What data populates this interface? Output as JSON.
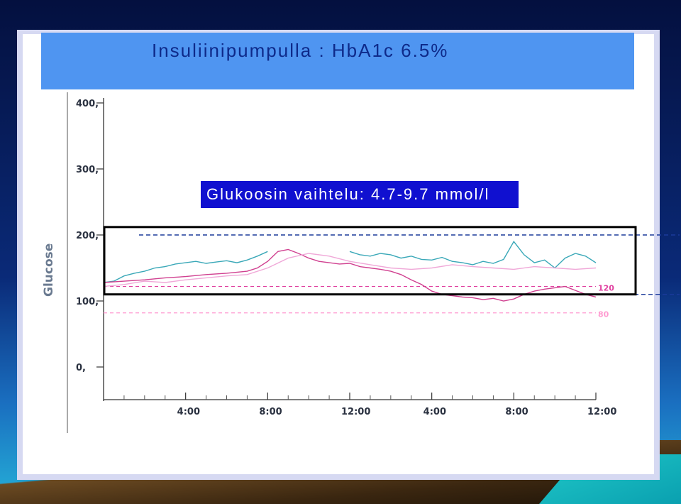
{
  "slide": {
    "title": "Insuliinipumpulla : HbA1c 6.5%",
    "callout": "Glukoosin vaihtelu: 4.7-9.7 mmol/l"
  },
  "chart_data": {
    "type": "line",
    "title": "",
    "xlabel": "",
    "ylabel": "Glucose",
    "ylim": [
      0,
      400
    ],
    "yticks": [
      "400,",
      "300,",
      "200,",
      "100,",
      "0,"
    ],
    "ytick_values": [
      400,
      300,
      200,
      100,
      0
    ],
    "xticks": [
      "4:00",
      "8:00",
      "12:00",
      "4:00",
      "8:00",
      "12:00"
    ],
    "xtick_hours": [
      4,
      8,
      12,
      16,
      20,
      24
    ],
    "xlim": [
      0,
      24
    ],
    "thresholds": [
      {
        "label": "120",
        "value": 122,
        "color": "#e040a0"
      },
      {
        "label": "80",
        "value": 82,
        "color": "#ff9ad0"
      }
    ],
    "highlight_range": [
      110,
      212
    ],
    "dashed_reference": [
      200,
      110
    ],
    "series": [
      {
        "color": "#3aa8b8",
        "x": [
          0,
          0.5,
          1,
          1.5,
          2,
          2.5,
          3,
          3.5,
          4,
          4.5,
          5,
          5.5,
          6,
          6.5,
          7,
          7.5,
          8,
          12,
          12.5,
          13,
          13.5,
          14,
          14.5,
          15,
          15.5,
          16,
          16.5,
          17,
          17.5,
          18,
          18.5,
          19,
          19.5,
          20,
          20.5,
          21,
          21.5,
          22,
          22.5,
          23,
          23.5,
          24
        ],
        "y": [
          128,
          130,
          138,
          142,
          145,
          150,
          152,
          156,
          158,
          160,
          157,
          159,
          161,
          158,
          162,
          168,
          175,
          175,
          170,
          168,
          172,
          170,
          165,
          168,
          163,
          162,
          166,
          160,
          158,
          155,
          160,
          157,
          163,
          190,
          170,
          158,
          162,
          150,
          165,
          172,
          168,
          158
        ]
      },
      {
        "color": "#d04090",
        "x": [
          0,
          1,
          2,
          3,
          4,
          5,
          6,
          7,
          7.5,
          8,
          8.5,
          9,
          9.5,
          10,
          10.5,
          11,
          11.5,
          12,
          12.5,
          13,
          13.5,
          14,
          14.5,
          15,
          15.5,
          16,
          16.5,
          17,
          17.5,
          18,
          18.5,
          19,
          19.5,
          20,
          20.5,
          21,
          21.5,
          22,
          22.5,
          23,
          23.5,
          24
        ],
        "y": [
          128,
          130,
          132,
          135,
          137,
          140,
          142,
          145,
          150,
          160,
          175,
          178,
          172,
          165,
          160,
          158,
          156,
          157,
          152,
          150,
          148,
          145,
          140,
          132,
          125,
          115,
          110,
          108,
          106,
          105,
          102,
          104,
          100,
          103,
          110,
          115,
          118,
          120,
          122,
          116,
          110,
          106
        ]
      },
      {
        "color": "#f0a8d8",
        "x": [
          0,
          1,
          2,
          3,
          4,
          5,
          6,
          7,
          8,
          9,
          10,
          11,
          12,
          13,
          14,
          15,
          16,
          17,
          18,
          19,
          20,
          21,
          22,
          23,
          24
        ],
        "y": [
          122,
          125,
          130,
          128,
          132,
          135,
          138,
          140,
          150,
          165,
          172,
          168,
          160,
          155,
          150,
          148,
          150,
          155,
          152,
          150,
          148,
          152,
          150,
          148,
          150
        ]
      }
    ]
  }
}
